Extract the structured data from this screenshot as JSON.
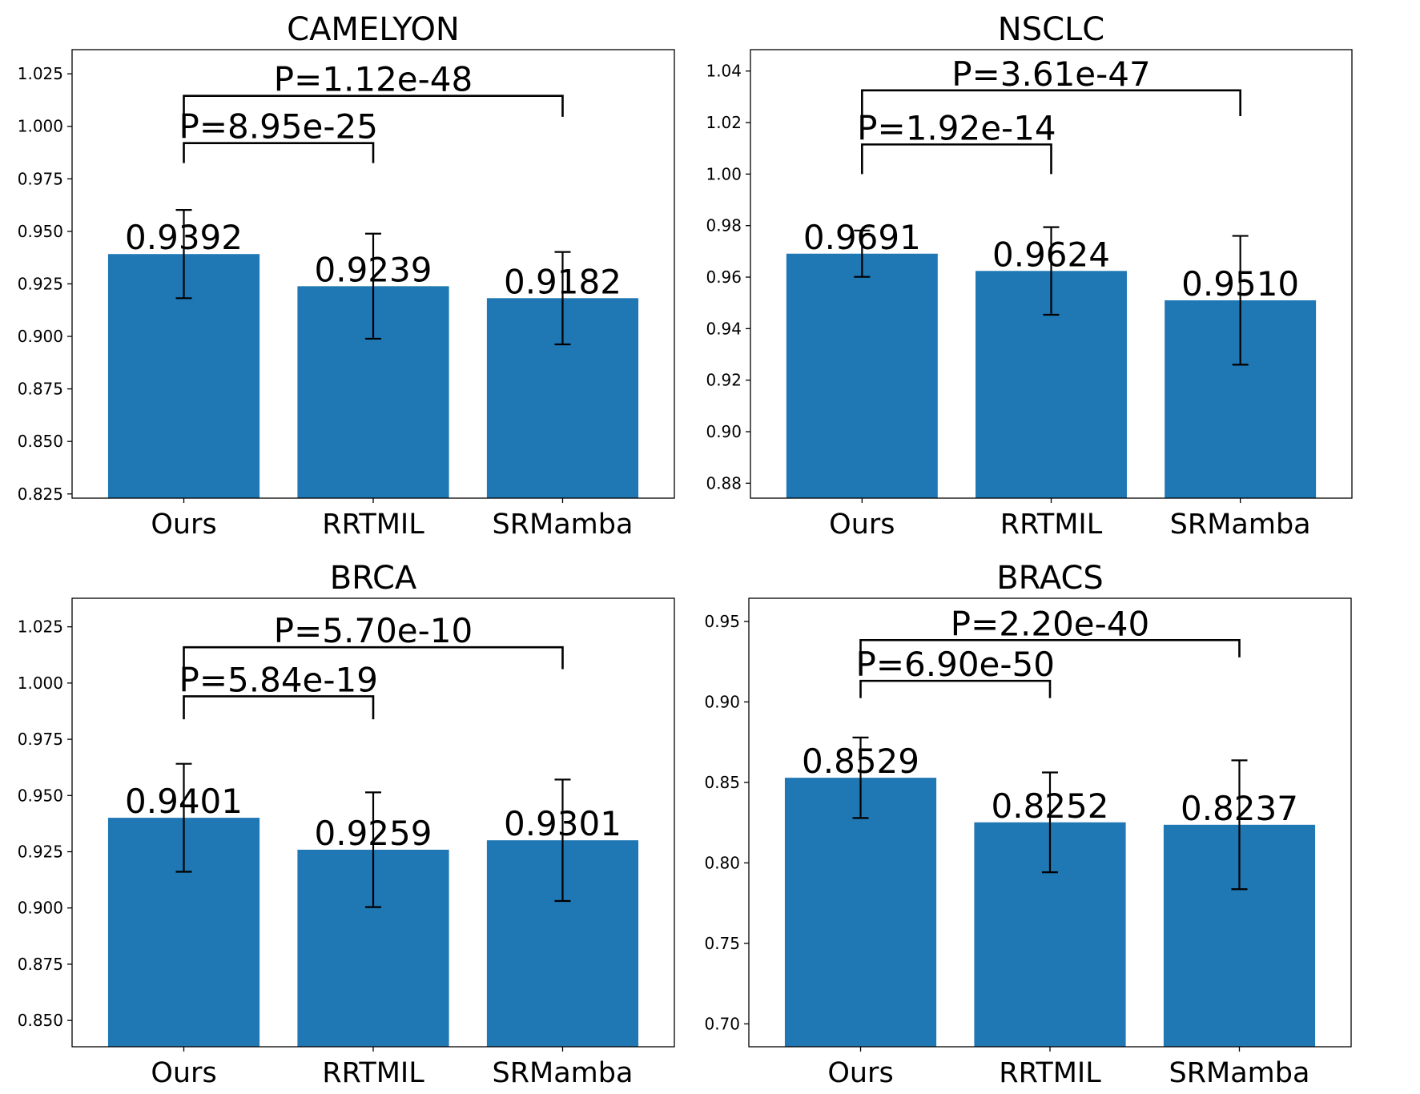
{
  "chart_data": [
    {
      "type": "bar",
      "title": "CAMELYON",
      "categories": [
        "Ours",
        "RRTMIL",
        "SRMamba"
      ],
      "values": [
        0.9392,
        0.9239,
        0.9182
      ],
      "value_labels": [
        "0.9392",
        "0.9239",
        "0.9182"
      ],
      "errors": [
        0.021,
        0.025,
        0.022
      ],
      "ylim": [
        0.823,
        1.0365
      ],
      "yticks": [
        0.825,
        0.85,
        0.875,
        0.9,
        0.925,
        0.95,
        0.975,
        1.0,
        1.025
      ],
      "ytick_labels": [
        "0.825",
        "0.850",
        "0.875",
        "0.900",
        "0.925",
        "0.950",
        "0.975",
        "1.000",
        "1.025"
      ],
      "brackets": [
        {
          "from": 0,
          "to": 1,
          "label": "P=8.95e-25",
          "top": 0.992,
          "bottom": 0.9825
        },
        {
          "from": 0,
          "to": 2,
          "label": "P=1.12e-48",
          "top": 1.0145,
          "bottom": 1.0045
        }
      ],
      "bar_color": "#1f77b4"
    },
    {
      "type": "bar",
      "title": "NSCLC",
      "categories": [
        "Ours",
        "RRTMIL",
        "SRMamba"
      ],
      "values": [
        0.9691,
        0.9624,
        0.951
      ],
      "value_labels": [
        "0.9691",
        "0.9624",
        "0.9510"
      ],
      "errors": [
        0.009,
        0.017,
        0.025
      ],
      "ylim": [
        0.8742,
        1.0483
      ],
      "yticks": [
        0.88,
        0.9,
        0.92,
        0.94,
        0.96,
        0.98,
        1.0,
        1.02,
        1.04
      ],
      "ytick_labels": [
        "0.88",
        "0.90",
        "0.92",
        "0.94",
        "0.96",
        "0.98",
        "1.00",
        "1.02",
        "1.04"
      ],
      "brackets": [
        {
          "from": 0,
          "to": 1,
          "label": "P=1.92e-14",
          "top": 1.0115,
          "bottom": 1.0
        },
        {
          "from": 0,
          "to": 2,
          "label": "P=3.61e-47",
          "top": 1.0325,
          "bottom": 1.0225
        }
      ],
      "bar_color": "#1f77b4"
    },
    {
      "type": "bar",
      "title": "BRCA",
      "categories": [
        "Ours",
        "RRTMIL",
        "SRMamba"
      ],
      "values": [
        0.9401,
        0.9259,
        0.9301
      ],
      "value_labels": [
        "0.9401",
        "0.9259",
        "0.9301"
      ],
      "errors": [
        0.024,
        0.0255,
        0.027
      ],
      "ylim": [
        0.8383,
        1.0377
      ],
      "yticks": [
        0.85,
        0.875,
        0.9,
        0.925,
        0.95,
        0.975,
        1.0,
        1.025
      ],
      "ytick_labels": [
        "0.850",
        "0.875",
        "0.900",
        "0.925",
        "0.950",
        "0.975",
        "1.000",
        "1.025"
      ],
      "brackets": [
        {
          "from": 0,
          "to": 1,
          "label": "P=5.84e-19",
          "top": 0.9941,
          "bottom": 0.9839
        },
        {
          "from": 0,
          "to": 2,
          "label": "P=5.70e-10",
          "top": 1.0159,
          "bottom": 1.0062
        }
      ],
      "bar_color": "#1f77b4"
    },
    {
      "type": "bar",
      "title": "BRACS",
      "categories": [
        "Ours",
        "RRTMIL",
        "SRMamba"
      ],
      "values": [
        0.8529,
        0.8252,
        0.8237
      ],
      "value_labels": [
        "0.8529",
        "0.8252",
        "0.8237"
      ],
      "errors": [
        0.025,
        0.031,
        0.04
      ],
      "ylim": [
        0.6858,
        0.9644
      ],
      "yticks": [
        0.7,
        0.75,
        0.8,
        0.85,
        0.9,
        0.95
      ],
      "ytick_labels": [
        "0.70",
        "0.75",
        "0.80",
        "0.85",
        "0.90",
        "0.95"
      ],
      "brackets": [
        {
          "from": 0,
          "to": 1,
          "label": "P=6.90e-50",
          "top": 0.9131,
          "bottom": 0.9024
        },
        {
          "from": 0,
          "to": 2,
          "label": "P=2.20e-40",
          "top": 0.9384,
          "bottom": 0.9277
        }
      ],
      "bar_color": "#1f77b4"
    }
  ]
}
